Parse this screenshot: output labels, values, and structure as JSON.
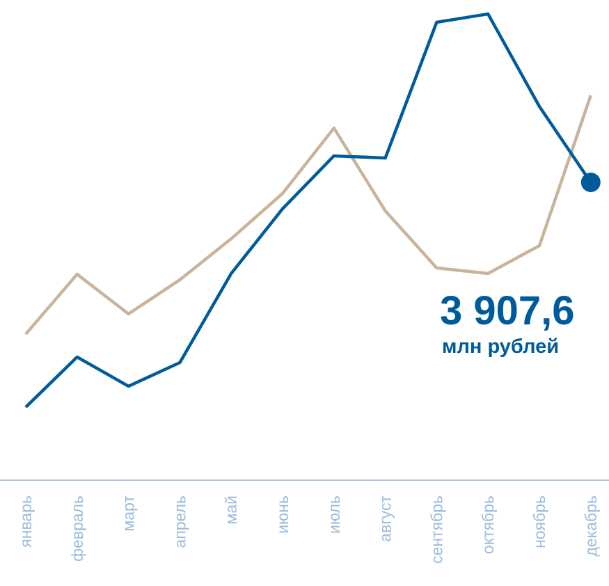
{
  "chart_data": {
    "type": "line",
    "categories": [
      "январь",
      "февраль",
      "март",
      "апрель",
      "май",
      "июнь",
      "июль",
      "август",
      "сентябрь",
      "октябрь",
      "ноябрь",
      "декабрь"
    ],
    "series": [
      {
        "color": "#c8b39c",
        "values": [
          1917,
          2702,
          2182,
          2629,
          3168,
          3762,
          4620,
          3533,
          2785,
          2712,
          3077,
          5049
        ]
      },
      {
        "color": "#005b9a",
        "values": [
          959,
          1616,
          1233,
          1543,
          2712,
          3561,
          4255,
          4227,
          6008,
          6117,
          4903,
          3907.6
        ],
        "value_labels": [
          null,
          null,
          null,
          null,
          null,
          null,
          null,
          null,
          null,
          null,
          null,
          "3 907,6"
        ]
      }
    ],
    "unit": "млн рублей",
    "ylim": [
      0,
      6300
    ]
  }
}
